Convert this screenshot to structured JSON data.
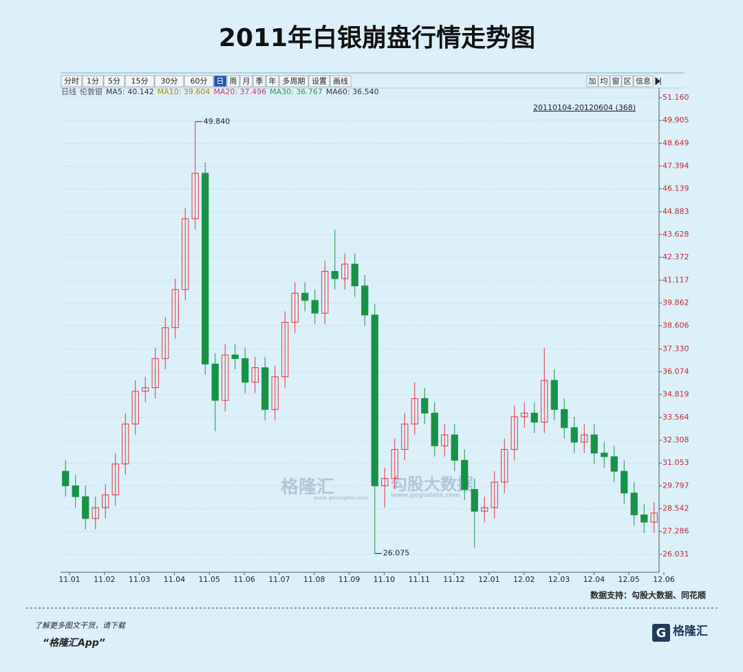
{
  "chart_data": {
    "type": "candlestick",
    "title": "2011年白银崩盘行情走势图",
    "toolbar": [
      "分时",
      "1分",
      "5分",
      "15分",
      "30分",
      "60分",
      "日",
      "周",
      "月",
      "季",
      "年",
      "多周期",
      "设置",
      "画线"
    ],
    "toolbar_selected": "日",
    "toolbar_right": [
      "加",
      "均",
      "窗",
      "区",
      "信息"
    ],
    "legend": [
      {
        "label": "日线",
        "color": "#555555"
      },
      {
        "label": "伦敦银",
        "color": "#555555"
      },
      {
        "label": "MA5: 40.142",
        "color": "#333333"
      },
      {
        "label": "MA10: 39.604",
        "color": "#b08a00"
      },
      {
        "label": "MA20: 37.496",
        "color": "#d0306a"
      },
      {
        "label": "MA30: 36.767",
        "color": "#2a9a3a"
      },
      {
        "label": "MA60: 36.540",
        "color": "#333333"
      }
    ],
    "range_label": "20110104-20120604 (368)",
    "up_color": "#e0323c",
    "down_color": "#179247",
    "annotations": [
      {
        "text": "49.840",
        "index": 13
      },
      {
        "text": "26.075",
        "index": 31
      }
    ],
    "categories": [
      "11.01",
      "11.02",
      "11.03",
      "11.04",
      "11.05",
      "11.06",
      "11.07",
      "11.08",
      "11.09",
      "11.10",
      "11.11",
      "11.12",
      "12.01",
      "12.02",
      "12.03",
      "12.04",
      "12.05",
      "12.06"
    ],
    "series": [
      {
        "name": "伦敦银",
        "open": [
          30.6,
          29.8,
          29.2,
          28.0,
          28.6,
          29.3,
          31.0,
          33.2,
          35.0,
          35.2,
          36.8,
          38.5,
          40.6,
          44.5,
          47.0,
          36.5,
          34.5,
          37.0,
          36.8,
          35.5,
          36.3,
          34.0,
          35.8,
          38.8,
          40.4,
          40.0,
          39.3,
          41.6,
          41.2,
          42.0,
          40.8,
          39.2,
          29.8,
          30.2,
          31.8,
          33.2,
          34.6,
          33.8,
          32.0,
          32.6,
          31.2,
          29.6,
          28.4,
          28.6,
          30.0,
          31.8,
          33.6,
          33.8,
          33.3,
          35.6,
          34.0,
          33.0,
          32.2,
          32.6,
          31.6,
          31.4,
          30.6,
          29.4,
          28.2,
          27.8
        ],
        "high": [
          31.2,
          30.4,
          29.8,
          29.2,
          29.9,
          31.6,
          33.8,
          35.6,
          35.8,
          37.4,
          39.1,
          41.2,
          45.1,
          49.84,
          47.6,
          37.1,
          37.6,
          37.6,
          37.4,
          36.9,
          36.9,
          36.4,
          39.4,
          41.0,
          41.0,
          40.6,
          42.2,
          43.9,
          42.6,
          42.6,
          41.4,
          39.8,
          30.8,
          32.4,
          33.8,
          35.5,
          35.2,
          34.4,
          33.2,
          33.2,
          31.8,
          30.2,
          29.2,
          30.6,
          32.4,
          34.2,
          34.4,
          34.4,
          37.4,
          36.2,
          34.6,
          33.6,
          33.2,
          33.2,
          32.2,
          32.0,
          31.2,
          30.0,
          28.8,
          28.9
        ],
        "low": [
          29.2,
          28.6,
          27.4,
          27.4,
          28.0,
          28.7,
          30.4,
          32.6,
          34.4,
          34.6,
          36.2,
          37.9,
          40.0,
          43.9,
          35.9,
          32.8,
          33.9,
          36.2,
          34.9,
          34.9,
          33.4,
          33.4,
          35.2,
          38.2,
          39.4,
          38.7,
          38.7,
          40.6,
          40.6,
          40.2,
          38.6,
          26.075,
          28.6,
          29.6,
          31.2,
          32.6,
          33.2,
          31.4,
          31.4,
          30.6,
          29.0,
          26.4,
          27.8,
          28.0,
          29.4,
          31.2,
          33.0,
          32.7,
          32.7,
          33.4,
          32.4,
          31.6,
          31.6,
          31.0,
          30.8,
          30.0,
          28.8,
          27.6,
          27.2,
          27.2
        ],
        "close": [
          29.8,
          29.2,
          28.0,
          28.6,
          29.3,
          31.0,
          33.2,
          35.0,
          35.2,
          36.8,
          38.5,
          40.6,
          44.5,
          47.0,
          36.5,
          34.5,
          37.0,
          36.8,
          35.5,
          36.3,
          34.0,
          35.8,
          38.8,
          40.4,
          40.0,
          39.3,
          41.6,
          41.2,
          42.0,
          40.8,
          39.2,
          29.8,
          30.2,
          31.8,
          33.2,
          34.6,
          33.8,
          32.0,
          32.6,
          31.2,
          29.6,
          28.4,
          28.6,
          30.0,
          31.8,
          33.6,
          33.8,
          33.3,
          35.6,
          34.0,
          33.0,
          32.2,
          32.6,
          31.6,
          31.4,
          30.6,
          29.4,
          28.2,
          27.8,
          28.3
        ]
      }
    ],
    "ylim": [
      25.04,
      51.69
    ],
    "yticks": [
      {
        "value": 51.16,
        "label": "51.160"
      },
      49.905,
      48.649,
      47.394,
      46.139,
      44.883,
      43.628,
      42.372,
      41.117,
      39.862,
      38.606,
      {
        "value": 37.33,
        "label": "37.330"
      },
      36.074,
      34.819,
      33.564,
      32.308,
      31.053,
      29.797,
      28.542,
      27.286,
      26.031
    ],
    "grid": true,
    "watermarks": [
      "格隆汇",
      "www.gelonghui.com",
      "勾股大数据",
      "www.gogudata.com"
    ],
    "source": "数据支持：勾股大数据、同花顺"
  },
  "footer": {
    "prompt": "了解更多图文干货，请下载",
    "app": "“格隆汇App”",
    "logo": "格隆汇"
  }
}
